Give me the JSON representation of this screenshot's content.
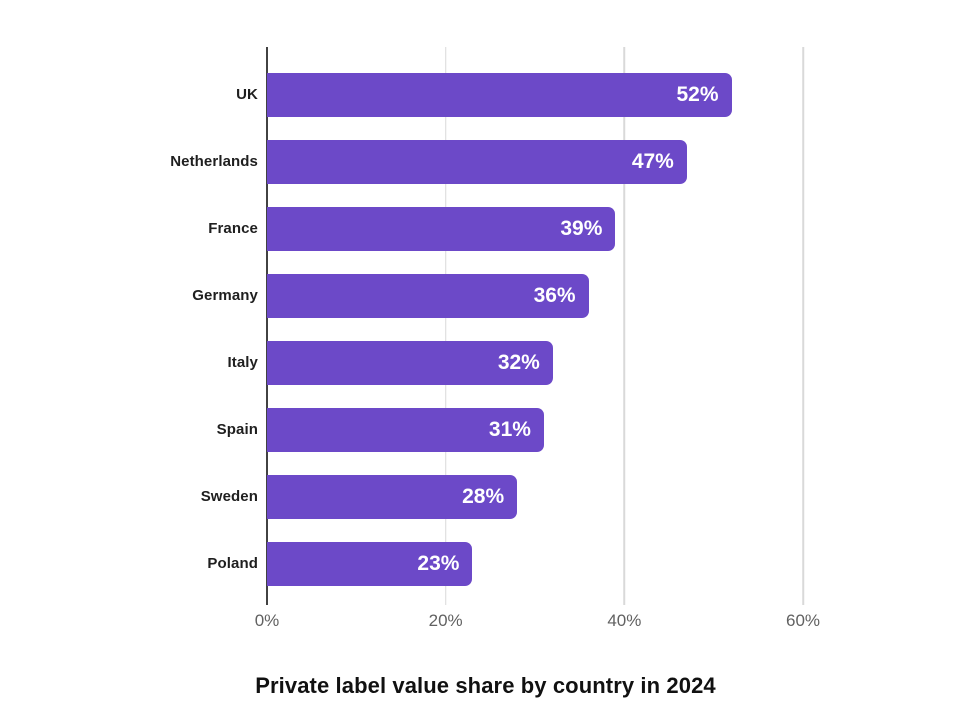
{
  "chart_data": {
    "type": "bar",
    "orientation": "horizontal",
    "title": "Private label value share by country in 2024",
    "categories": [
      "UK",
      "Netherlands",
      "France",
      "Germany",
      "Italy",
      "Spain",
      "Sweden",
      "Poland"
    ],
    "values": [
      52,
      47,
      39,
      36,
      32,
      31,
      28,
      23
    ],
    "value_labels": [
      "52%",
      "47%",
      "39%",
      "36%",
      "32%",
      "31%",
      "28%",
      "23%"
    ],
    "x_ticks": [
      "0%",
      "20%",
      "40%",
      "60%"
    ],
    "x_tick_values": [
      0,
      20,
      40,
      60
    ],
    "xlim": [
      0,
      60
    ],
    "grid": true,
    "legend": false,
    "value_label_position": "inside-end",
    "colors": {
      "bar": "#6C49C8",
      "axis": "#424242",
      "grid": "#D9D9D9",
      "tick_text": "#616161",
      "category_text": "#1F1F1F",
      "value_text": "#FFFFFF",
      "title_text": "#111111"
    }
  }
}
